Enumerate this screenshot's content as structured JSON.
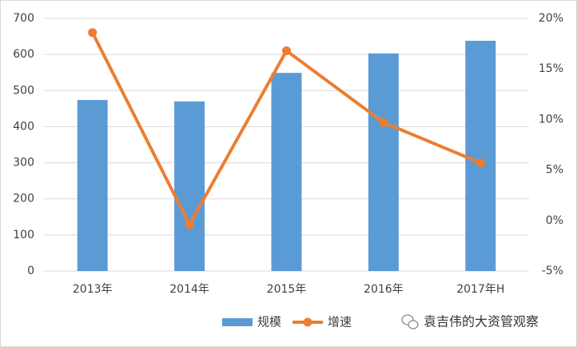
{
  "chart_data": {
    "type": "bar",
    "categories": [
      "2013年",
      "2014年",
      "2015年",
      "2016年",
      "2017年H"
    ],
    "series": [
      {
        "name": "规模",
        "type": "bar",
        "color": "#5b9bd5",
        "values": [
          474,
          470,
          549,
          603,
          638
        ]
      },
      {
        "name": "增速",
        "type": "line",
        "axis": "y2",
        "color": "#ed7d31",
        "values": [
          18.6,
          -0.4,
          16.8,
          9.7,
          5.7
        ]
      }
    ],
    "ylim": [
      0,
      700
    ],
    "yticks": [
      0,
      100,
      200,
      300,
      400,
      500,
      600,
      700
    ],
    "y2lim": [
      -5,
      20
    ],
    "y2ticks": [
      {
        "value": -5,
        "label": "-5%"
      },
      {
        "value": 0,
        "label": "0%"
      },
      {
        "value": 5,
        "label": "5%"
      },
      {
        "value": 10,
        "label": "10%"
      },
      {
        "value": 15,
        "label": "15%"
      },
      {
        "value": 20,
        "label": "20%"
      }
    ],
    "grid": true,
    "legend": "bottom"
  },
  "watermark": "袁吉伟的大资管观察"
}
